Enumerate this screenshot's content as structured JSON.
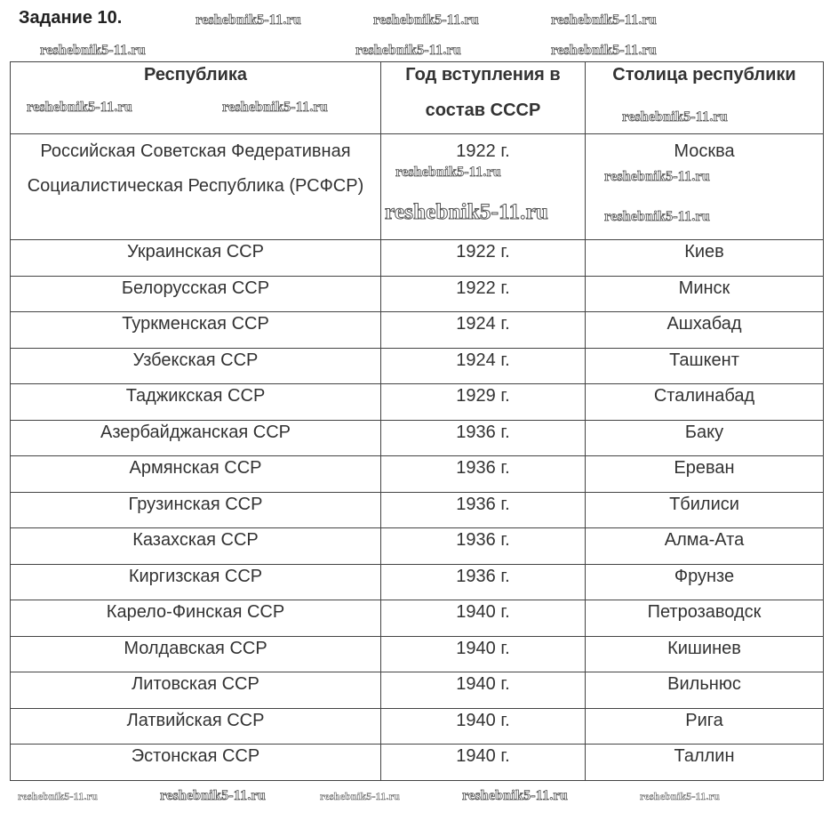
{
  "title": "Задание 10.",
  "headers": [
    "Республика",
    "Год вступления в состав СССР",
    "Столица республики"
  ],
  "rows": [
    [
      "Российская Советская Федеративная Социалистическая Республика (РСФСР)",
      "1922 г.",
      "Москва"
    ],
    [
      "Украинская ССР",
      "1922 г.",
      "Киев"
    ],
    [
      "Белорусская ССР",
      "1922 г.",
      "Минск"
    ],
    [
      "Туркменская ССР",
      "1924 г.",
      "Ашхабад"
    ],
    [
      "Узбекская ССР",
      "1924 г.",
      "Ташкент"
    ],
    [
      "Таджикская ССР",
      "1929 г.",
      "Сталинабад"
    ],
    [
      "Азербайджанская ССР",
      "1936 г.",
      "Баку"
    ],
    [
      "Армянская ССР",
      "1936 г.",
      "Ереван"
    ],
    [
      "Грузинская ССР",
      "1936 г.",
      "Тбилиси"
    ],
    [
      "Казахская ССР",
      "1936 г.",
      "Алма-Ата"
    ],
    [
      "Киргизская ССР",
      "1936 г.",
      "Фрунзе"
    ],
    [
      "Карело-Финская ССР",
      "1940 г.",
      "Петрозаводск"
    ],
    [
      "Молдавская ССР",
      "1940 г.",
      "Кишинев"
    ],
    [
      "Литовская ССР",
      "1940 г.",
      "Вильнюс"
    ],
    [
      "Латвийская ССР",
      "1940 г.",
      "Рига"
    ],
    [
      "Эстонская ССР",
      "1940 г.",
      "Таллин"
    ]
  ],
  "watermark": "reshebnik5-11.ru"
}
